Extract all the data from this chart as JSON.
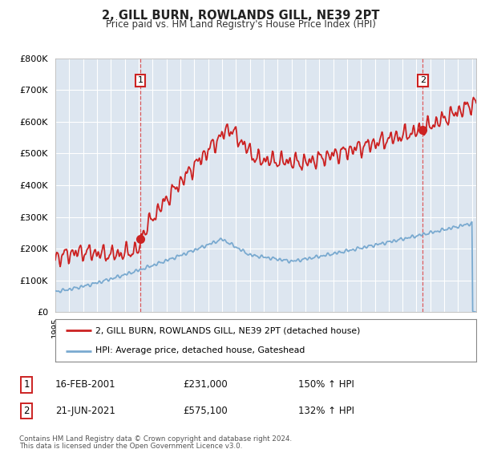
{
  "title": "2, GILL BURN, ROWLANDS GILL, NE39 2PT",
  "subtitle": "Price paid vs. HM Land Registry's House Price Index (HPI)",
  "legend_line1": "2, GILL BURN, ROWLANDS GILL, NE39 2PT (detached house)",
  "legend_line2": "HPI: Average price, detached house, Gateshead",
  "sale1_date": "16-FEB-2001",
  "sale1_price": 231000,
  "sale1_price_str": "£231,000",
  "sale1_hpi_pct": "150% ↑ HPI",
  "sale2_date": "21-JUN-2021",
  "sale2_price": 575100,
  "sale2_price_str": "£575,100",
  "sale2_hpi_pct": "132% ↑ HPI",
  "footer1": "Contains HM Land Registry data © Crown copyright and database right 2024.",
  "footer2": "This data is licensed under the Open Government Licence v3.0.",
  "ylim": [
    0,
    800000
  ],
  "xlim_left": 1995,
  "xlim_right": 2025.3,
  "background_color": "#dde6f0",
  "grid_color": "#ffffff",
  "red_color": "#cc2222",
  "blue_color": "#7aaad0",
  "dashed_color": "#dd4444",
  "sale1_x": 2001.125,
  "sale2_x": 2021.458
}
